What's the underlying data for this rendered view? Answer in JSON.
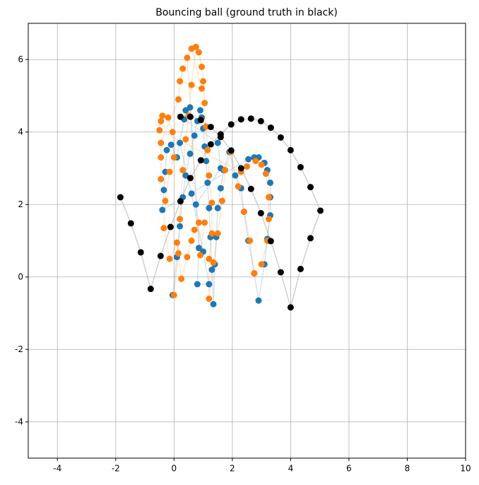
{
  "chart_data": {
    "type": "scatter",
    "title": "Bouncing ball (ground truth in black)",
    "xlim": [
      -5,
      10
    ],
    "ylim": [
      -5,
      7
    ],
    "xticks": [
      -4,
      -2,
      0,
      2,
      4,
      6,
      8,
      10
    ],
    "yticks": [
      -4,
      -2,
      0,
      2,
      4,
      6
    ],
    "grid": true,
    "series": [
      {
        "color": "#1f77b4",
        "x": [
          -0.05,
          0.1,
          0.2,
          0.3,
          0.4,
          0.55,
          0.7,
          0.8,
          0.9,
          0.95,
          1.0,
          1.05,
          1.1,
          1.15,
          1.2,
          1.25,
          1.3,
          1.35,
          1.4,
          1.45,
          1.5,
          1.6,
          1.7,
          1.9,
          2.1,
          2.3,
          2.4,
          2.55,
          2.75,
          2.9,
          3.1,
          3.2,
          3.3,
          3.3,
          3.3,
          3.2,
          3.1,
          2.9,
          2.75,
          2.55,
          -0.4,
          -0.35,
          -0.3,
          -0.25,
          -0.1,
          0.1,
          0.4,
          0.55,
          0.85,
          0.8,
          1.2,
          1.0,
          0.6,
          0.2,
          0.35,
          1.5,
          1.6,
          0.75
        ],
        "y": [
          -0.5,
          0.55,
          1.4,
          2.2,
          2.8,
          3.4,
          3.9,
          4.3,
          4.6,
          4.4,
          4.1,
          3.6,
          3.2,
          2.6,
          1.9,
          1.1,
          0.2,
          -0.75,
          0.35,
          1.1,
          1.9,
          2.45,
          2.95,
          3.45,
          2.8,
          2.45,
          1.8,
          1.0,
          0.1,
          -0.65,
          0.35,
          1.05,
          1.7,
          2.2,
          2.6,
          2.95,
          3.15,
          3.3,
          3.3,
          3.25,
          1.85,
          2.4,
          2.9,
          3.5,
          3.65,
          3.3,
          4.6,
          4.68,
          0.8,
          -0.2,
          -0.2,
          0.7,
          2.3,
          3.7,
          4.35,
          3.7,
          3.0,
          2.0
        ]
      },
      {
        "color": "#ff7f0e",
        "x": [
          0.0,
          0.15,
          0.2,
          0.3,
          0.4,
          0.5,
          0.6,
          0.75,
          0.85,
          0.95,
          1.0,
          1.05,
          1.1,
          1.15,
          1.2,
          1.3,
          1.3,
          1.2,
          1.2,
          1.35,
          1.5,
          1.65,
          1.75,
          1.95,
          2.2,
          2.4,
          2.6,
          2.75,
          3.0,
          3.2,
          3.25,
          3.25,
          3.15,
          3.0,
          2.8,
          2.5,
          2.3,
          -0.5,
          -0.45,
          -0.4,
          -0.2,
          -0.05,
          0.0,
          -0.15,
          -0.3,
          -0.35,
          -0.15,
          0.1,
          0.25,
          0.45,
          0.6,
          0.7,
          0.85,
          1.05,
          0.9,
          0.45,
          0.6,
          0.95,
          0.2,
          0.3,
          0.15,
          -0.45,
          -0.45,
          -0.45
        ],
        "y": [
          -0.5,
          0.65,
          1.6,
          2.95,
          3.8,
          4.45,
          5.3,
          6.35,
          6.2,
          5.8,
          5.4,
          4.8,
          4.15,
          3.5,
          2.8,
          2.05,
          1.2,
          0.5,
          -0.6,
          0.4,
          1.2,
          2.1,
          2.95,
          3.45,
          2.5,
          1.8,
          1.0,
          0.1,
          0.35,
          1.0,
          1.6,
          2.2,
          2.85,
          3.1,
          3.2,
          3.05,
          2.9,
          4.05,
          4.3,
          4.45,
          4.4,
          4.0,
          3.3,
          2.9,
          2.1,
          1.35,
          0.5,
          0.95,
          -0.05,
          0.55,
          1.0,
          1.3,
          1.5,
          1.5,
          0.6,
          6.05,
          6.3,
          5.2,
          5.4,
          5.75,
          4.9,
          3.7,
          3.3,
          2.7
        ]
      },
      {
        "color": "#000000",
        "x": [
          -1.84,
          -1.48,
          -1.14,
          -0.8,
          -0.46,
          -0.12,
          0.22,
          0.56,
          0.92,
          1.26,
          1.6,
          1.96,
          2.3,
          2.64,
          2.98,
          3.32,
          3.66,
          4.0,
          4.34,
          4.68,
          5.02,
          4.68,
          4.34,
          4.0,
          3.66,
          3.32,
          2.98,
          2.64,
          2.3,
          1.96,
          1.6,
          1.26,
          0.92,
          0.56,
          0.22
        ],
        "y": [
          2.2,
          1.48,
          0.68,
          -0.33,
          0.58,
          1.38,
          2.09,
          2.73,
          3.22,
          3.66,
          3.94,
          4.21,
          4.35,
          4.37,
          4.3,
          4.12,
          3.85,
          3.5,
          3.03,
          2.48,
          1.83,
          1.07,
          0.22,
          -0.84,
          0.13,
          0.99,
          1.76,
          2.43,
          3.0,
          3.49,
          3.86,
          4.14,
          4.33,
          4.42,
          4.42
        ]
      }
    ]
  }
}
